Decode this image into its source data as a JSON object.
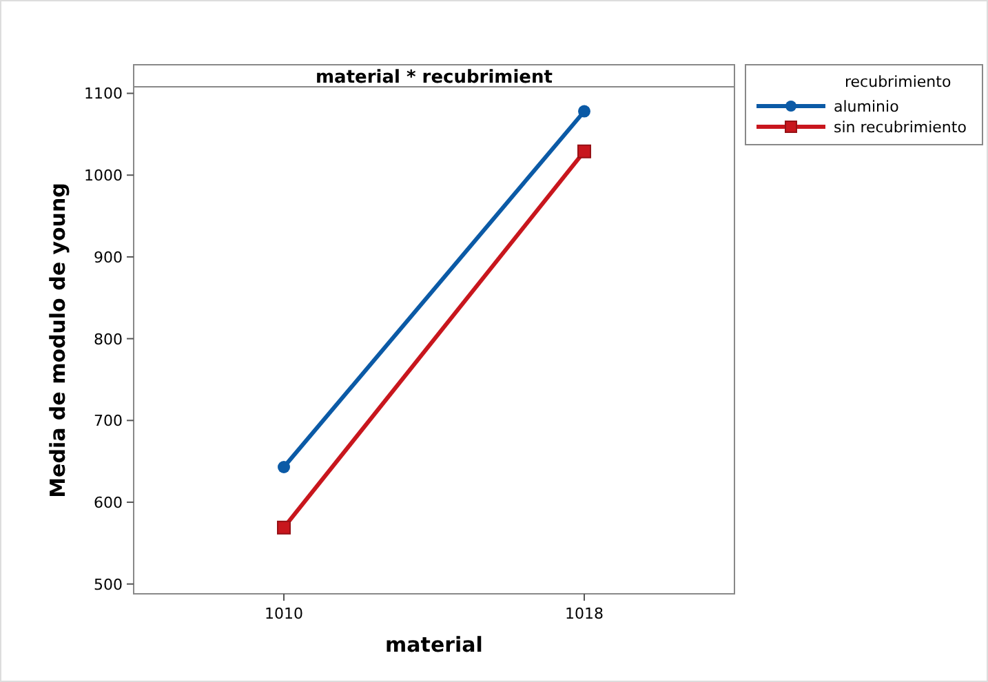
{
  "chart_data": {
    "type": "line",
    "title": "material * recubrimient",
    "xlabel": "material",
    "ylabel": "Media de modulo de young",
    "legend_title": "recubrimiento",
    "categories": [
      "1010",
      "1018"
    ],
    "series": [
      {
        "name": "aluminio",
        "color": "#0b5aa6",
        "marker": "circle",
        "values": [
          643,
          1078
        ]
      },
      {
        "name": "sin recubrimiento",
        "color": "#c8161d",
        "marker": "square",
        "values": [
          569,
          1029
        ]
      }
    ],
    "ylim": [
      488,
      1108
    ],
    "yticks": [
      500,
      600,
      700,
      800,
      900,
      1000,
      1100
    ],
    "grid": false,
    "legend": "top right",
    "line_style": "solid"
  }
}
